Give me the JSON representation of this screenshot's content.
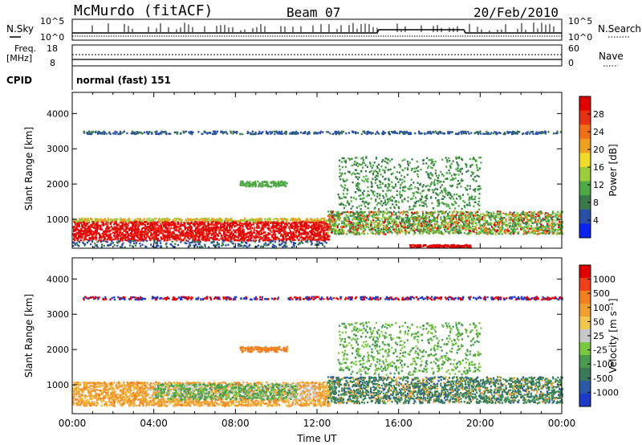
{
  "header": {
    "station": "McMurdo (fitACF)",
    "beam": "Beam 07",
    "date": "20/Feb/2010"
  },
  "top_panels": {
    "nsky_label": "N.Sky",
    "nsearch_label": "N.Search",
    "nsky_ticks": [
      "10^5",
      "10^0"
    ],
    "nsearch_ticks": [
      "10^5",
      "10^0"
    ],
    "freq_label_1": "Freq.",
    "freq_label_2": "[MHz]",
    "freq_ticks": [
      "18",
      "8"
    ],
    "nave_label": "Nave",
    "nave_ticks": [
      "60",
      "0"
    ],
    "cpid_label": "CPID",
    "cpid_value": "normal (fast) 151"
  },
  "colors": {
    "power": [
      "#0a23f0",
      "#2a4fa6",
      "#3a7a4a",
      "#4faa46",
      "#9ccd3c",
      "#f0dc28",
      "#f0a020",
      "#f07018",
      "#e83014",
      "#e00000"
    ],
    "velocity": [
      "#1e3cc8",
      "#2a5aa6",
      "#3a7a5a",
      "#4a9a50",
      "#7ac842",
      "#c8c8c8",
      "#f0c850",
      "#f0a030",
      "#f08020",
      "#f04018",
      "#e00000"
    ]
  },
  "chart_data": [
    {
      "type": "heatmap",
      "panel": "power",
      "xlabel": "",
      "ylabel": "Slant Range [km]",
      "xlim": [
        0,
        24
      ],
      "ylim": [
        180,
        4600
      ],
      "yticks": [
        "1000",
        "2000",
        "3000",
        "4000"
      ],
      "colorbar_label": "Power [dB]",
      "colorbar_ticks": [
        "4",
        "8",
        "12",
        "16",
        "20",
        "24",
        "28"
      ],
      "features": [
        {
          "name": "strong near-range echoes",
          "x": [
            0,
            12.5
          ],
          "y": [
            450,
            1050
          ],
          "value_db": 26
        },
        {
          "name": "banded scatter",
          "x": [
            12.5,
            24
          ],
          "y": [
            600,
            1250
          ],
          "value_db": 18
        },
        {
          "name": "far-range line",
          "x": [
            0.5,
            24
          ],
          "y": [
            3450,
            3520
          ],
          "value_db": 6
        }
      ]
    },
    {
      "type": "heatmap",
      "panel": "velocity",
      "xlabel": "Time UT",
      "ylabel": "Slant Range [km]",
      "xlim": [
        0,
        24
      ],
      "ylim": [
        180,
        4600
      ],
      "xticks": [
        "00:00",
        "04:00",
        "08:00",
        "12:00",
        "16:00",
        "20:00",
        "00:00"
      ],
      "yticks": [
        "1000",
        "2000",
        "3000",
        "4000"
      ],
      "colorbar_label": "Velocity [m s⁻¹]",
      "colorbar_ticks": [
        "1000",
        "500",
        "100",
        "50",
        "25",
        "-25",
        "-100",
        "-500",
        "-1000"
      ],
      "features": [
        {
          "name": "receding flow",
          "x": [
            0,
            12.5
          ],
          "y": [
            450,
            1100
          ],
          "value_ms": -120
        },
        {
          "name": "ground scatter",
          "x": [
            3.5,
            12
          ],
          "y": [
            600,
            1050
          ],
          "value_ms": 0
        },
        {
          "name": "approaching flow",
          "x": [
            12.5,
            24
          ],
          "y": [
            500,
            1250
          ],
          "value_ms": 200
        }
      ]
    }
  ]
}
